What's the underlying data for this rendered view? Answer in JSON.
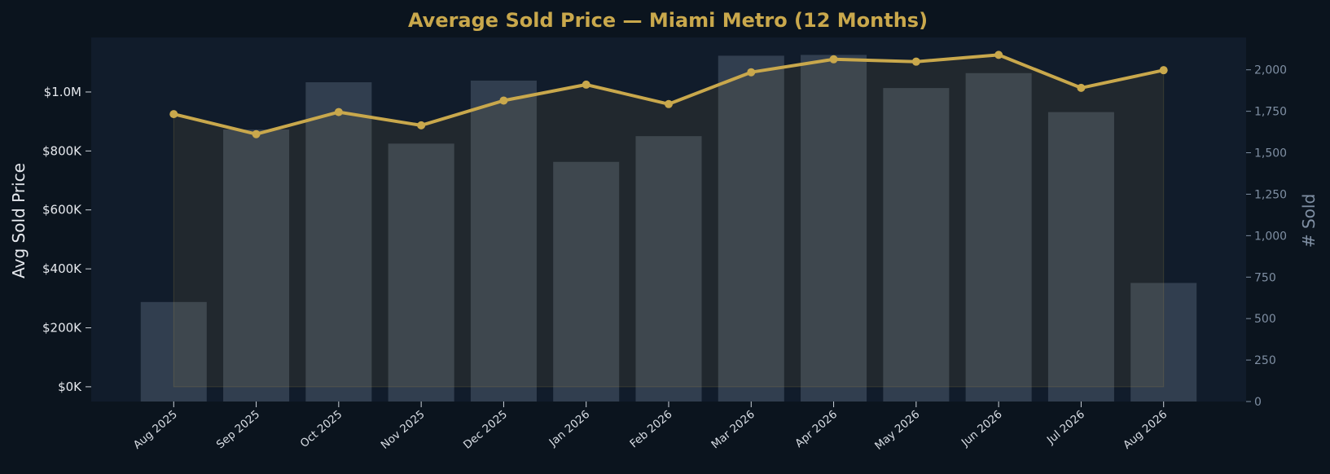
{
  "chart_data": {
    "type": "bar+line",
    "title": "Average Sold Price — Miami Metro (12 Months)",
    "categories": [
      "Aug 2025",
      "Sep 2025",
      "Oct 2025",
      "Nov 2025",
      "Dec 2025",
      "Jan 2026",
      "Feb 2026",
      "Mar 2026",
      "Apr 2026",
      "May 2026",
      "Jun 2026",
      "Jul 2026",
      "Aug 2026"
    ],
    "series": [
      {
        "name": "Avg Sold Price",
        "type": "line",
        "axis": "left",
        "values": [
          925000,
          857000,
          932000,
          887000,
          971000,
          1025000,
          959000,
          1067000,
          1111000,
          1103000,
          1126000,
          1014000,
          1074000
        ]
      },
      {
        "name": "# Sold",
        "type": "bar",
        "axis": "right",
        "values": [
          600,
          1640,
          1925,
          1555,
          1935,
          1445,
          1600,
          2085,
          2090,
          1890,
          1980,
          1745,
          715
        ]
      }
    ],
    "ylabel": "Avg Sold Price",
    "y2label": "# Sold",
    "ylim": [
      -50000,
      1185000
    ],
    "y2lim": [
      0,
      2195
    ],
    "yticks": [
      "$0K",
      "$200K",
      "$400K",
      "$600K",
      "$800K",
      "$1.0M"
    ],
    "yticks_values": [
      0,
      200000,
      400000,
      600000,
      800000,
      1000000
    ],
    "y2ticks": [
      "0",
      "250",
      "500",
      "750",
      "1,000",
      "1,250",
      "1,500",
      "1,750",
      "2,000"
    ],
    "y2ticks_values": [
      0,
      250,
      500,
      750,
      1000,
      1250,
      1500,
      1750,
      2000
    ],
    "grid": false,
    "legend": "none",
    "colors": {
      "line": "#c9a84c",
      "bar": "#3e4c5d",
      "plot_bg": "#111c2b",
      "page_bg": "#0b141e",
      "title": "#c9a84c"
    }
  }
}
